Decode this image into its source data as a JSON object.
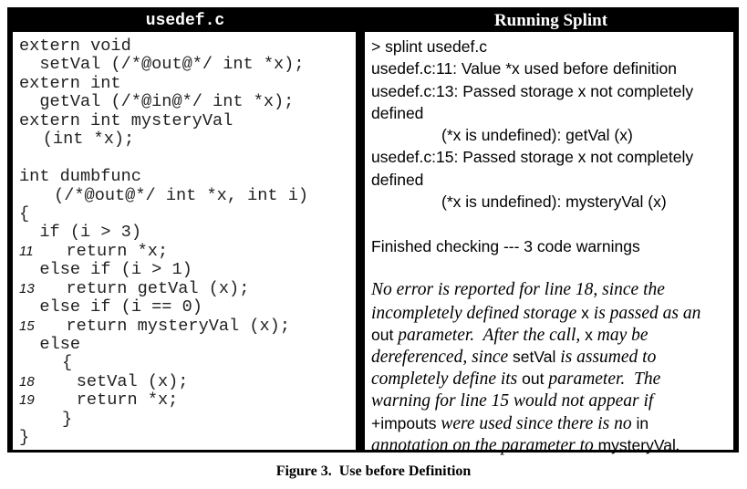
{
  "left_header": "usedef.c",
  "right_header": "Running Splint",
  "code_lines": [
    {
      "num": "",
      "text": "extern void",
      "indent": 0
    },
    {
      "num": "",
      "text": "setVal (/*@out@*/ int *x);",
      "indent": 2
    },
    {
      "num": "",
      "text": "extern int",
      "indent": 0
    },
    {
      "num": "",
      "text": "getVal (/*@in@*/ int *x);",
      "indent": 2
    },
    {
      "num": "",
      "text": "extern int mysteryVal",
      "indent": 0
    },
    {
      "num": "",
      "text": "(int *x);",
      "indent": 2.3
    },
    {
      "num": "",
      "text": "",
      "indent": 0
    },
    {
      "num": "",
      "text": "int dumbfunc",
      "indent": 0
    },
    {
      "num": "",
      "text": "(/*@out@*/ int *x, int i)",
      "indent": 3.4
    },
    {
      "num": "",
      "text": "{",
      "indent": 0
    },
    {
      "num": "",
      "text": "if (i > 3)",
      "indent": 2
    },
    {
      "num": "11",
      "text": "return *x;",
      "indent": 4.6
    },
    {
      "num": "",
      "text": "else if (i > 1)",
      "indent": 2
    },
    {
      "num": "13",
      "text": "return getVal (x);",
      "indent": 4.6
    },
    {
      "num": "",
      "text": "else if (i == 0)",
      "indent": 2
    },
    {
      "num": "15",
      "text": "return mysteryVal (x);",
      "indent": 4.6
    },
    {
      "num": "",
      "text": "else",
      "indent": 2
    },
    {
      "num": "",
      "text": "{",
      "indent": 4.2
    },
    {
      "num": "18",
      "text": "setVal (x);",
      "indent": 5.6
    },
    {
      "num": "19",
      "text": "return *x;",
      "indent": 5.6
    },
    {
      "num": "",
      "text": "}",
      "indent": 4.2
    },
    {
      "num": "",
      "text": "}",
      "indent": 0
    }
  ],
  "output_lines": [
    {
      "text": "> splint usedef.c",
      "indented": false
    },
    {
      "text": "usedef.c:11: Value *x used before definition",
      "indented": false
    },
    {
      "text": "usedef.c:13: Passed storage x not completely",
      "indented": false
    },
    {
      "text": "defined",
      "indented": false
    },
    {
      "text": "(*x is undefined): getVal (x)",
      "indented": true
    },
    {
      "text": "usedef.c:15: Passed storage x not completely",
      "indented": false
    },
    {
      "text": "defined",
      "indented": false
    },
    {
      "text": "(*x is undefined): mysteryVal (x)",
      "indented": true
    },
    {
      "text": "",
      "indented": false
    },
    {
      "text": "Finished checking --- 3 code warnings",
      "indented": false
    },
    {
      "text": "",
      "indented": false
    }
  ],
  "explanation_lines": [
    [
      {
        "t": "No error is reported for line 18, since the"
      }
    ],
    [
      {
        "t": "incompletely defined storage "
      },
      {
        "t": "x",
        "code": true
      },
      {
        "t": " is passed as an"
      }
    ],
    [
      {
        "t": "out",
        "code": true
      },
      {
        "t": " parameter.  After the call, "
      },
      {
        "t": "x",
        "code": true
      },
      {
        "t": " may be"
      }
    ],
    [
      {
        "t": "dereferenced, since "
      },
      {
        "t": "setVal",
        "code": true
      },
      {
        "t": " is assumed to"
      }
    ],
    [
      {
        "t": "completely define its "
      },
      {
        "t": "out",
        "code": true
      },
      {
        "t": " parameter.  The"
      }
    ],
    [
      {
        "t": "warning for line 15 would not appear if"
      }
    ],
    [
      {
        "t": "+impouts",
        "code": true
      },
      {
        "t": " were used since there is no "
      },
      {
        "t": "in",
        "code": true
      }
    ],
    [
      {
        "t": "annotation on the parameter to "
      },
      {
        "t": "mysteryVal",
        "code": true
      },
      {
        "t": "."
      }
    ]
  ],
  "caption": "Figure 3.  Use before Definition"
}
